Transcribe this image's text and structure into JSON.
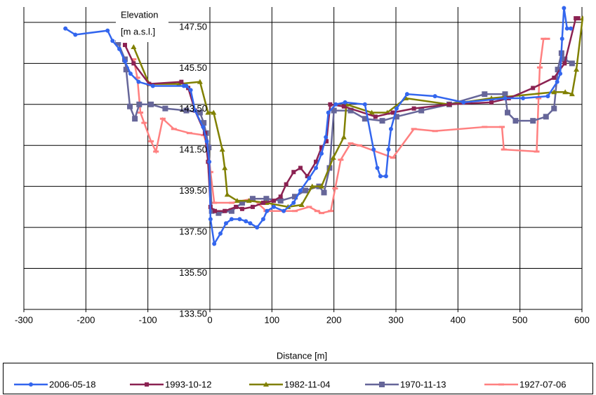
{
  "chart_data": {
    "type": "line",
    "y_title": "Elevation",
    "y_unit": "[m a.s.l.]",
    "x_title": "Distance [m]",
    "xlim": [
      -300,
      600
    ],
    "xticks": [
      -300,
      -200,
      -100,
      0,
      100,
      200,
      300,
      400,
      500,
      600
    ],
    "ylim": [
      133.5,
      148.25
    ],
    "yticks": [
      {
        "value": 133.5,
        "label": "133.50"
      },
      {
        "value": 135.5,
        "label": "135.50"
      },
      {
        "value": 137.5,
        "label": "137.50"
      },
      {
        "value": 139.5,
        "label": "139.50"
      },
      {
        "value": 141.5,
        "label": "141.50"
      },
      {
        "value": 143.5,
        "label": "143.50"
      },
      {
        "value": 145.5,
        "label": "145.50"
      },
      {
        "value": 147.5,
        "label": "147.50"
      }
    ],
    "grid": true,
    "legend": "bottom",
    "series": [
      {
        "name": "2006-05-18",
        "color": "#3366ee",
        "marker": "circle",
        "x": [
          -233,
          -217,
          -165,
          -157,
          -146,
          -137,
          -128,
          -115,
          -92,
          -42,
          -38,
          -31,
          -24,
          -11,
          -5,
          -1,
          1,
          7,
          17,
          26,
          35,
          48,
          58,
          65,
          76,
          86,
          92,
          103,
          119,
          135,
          146,
          160,
          171,
          180,
          187,
          191,
          203,
          218,
          250,
          264,
          270,
          275,
          284,
          288,
          292,
          301,
          318,
          363,
          409,
          476,
          505,
          545,
          560,
          565,
          568,
          571,
          576,
          582
        ],
        "values": [
          147.2,
          146.9,
          147.1,
          146.6,
          146.2,
          145.6,
          145.0,
          144.6,
          144.4,
          144.4,
          144.4,
          144.2,
          143.2,
          142.4,
          141.7,
          140.7,
          137.9,
          136.7,
          137.2,
          137.7,
          137.9,
          137.9,
          137.8,
          137.7,
          137.5,
          137.9,
          138.3,
          138.5,
          138.3,
          138.7,
          139.3,
          139.9,
          140.4,
          141.1,
          141.9,
          143.1,
          143.5,
          143.6,
          143.5,
          141.3,
          140.4,
          140.0,
          140.0,
          141.3,
          142.3,
          143.3,
          144.0,
          143.9,
          143.6,
          143.8,
          143.8,
          143.9,
          144.6,
          145.0,
          146.7,
          148.2,
          147.2,
          147.2
        ]
      },
      {
        "name": "1993-10-12",
        "color": "#8b2252",
        "marker": "square",
        "x": [
          -137,
          -123,
          -98,
          -46,
          -35,
          -24,
          -8,
          -3,
          1,
          8,
          24,
          42,
          52,
          69,
          86,
          103,
          114,
          123,
          135,
          146,
          157,
          171,
          180,
          188,
          194,
          216,
          267,
          295,
          329,
          386,
          454,
          482,
          521,
          555,
          572,
          590,
          594
        ],
        "values": [
          146.4,
          145.5,
          144.5,
          144.6,
          144.3,
          143.2,
          142.1,
          140.7,
          138.5,
          138.3,
          138.3,
          138.5,
          138.4,
          138.5,
          138.7,
          138.8,
          139.0,
          139.6,
          140.2,
          140.4,
          140.0,
          140.7,
          141.4,
          141.7,
          143.5,
          143.4,
          142.9,
          143.1,
          143.3,
          143.5,
          143.6,
          143.8,
          144.3,
          144.8,
          145.5,
          147.7,
          147.7
        ]
      },
      {
        "name": "1982-11-04",
        "color": "#808000",
        "marker": "triangle",
        "x": [
          -123,
          -98,
          -50,
          -16,
          -3,
          6,
          20,
          24,
          28,
          44,
          63,
          91,
          126,
          148,
          165,
          180,
          199,
          216,
          220,
          261,
          286,
          316,
          386,
          454,
          555,
          573,
          584,
          591,
          601
        ],
        "values": [
          146.3,
          144.5,
          144.5,
          144.6,
          143.1,
          143.1,
          141.3,
          140.4,
          139.1,
          138.8,
          138.8,
          138.7,
          138.5,
          138.6,
          139.5,
          139.5,
          140.9,
          141.9,
          143.5,
          143.1,
          143.1,
          143.8,
          143.5,
          143.8,
          144.1,
          144.1,
          144.0,
          145.2,
          147.7
        ]
      },
      {
        "name": "1970-11-13",
        "color": "#666699",
        "marker": "bigsquare",
        "x": [
          -148,
          -137,
          -135,
          -129,
          -121,
          -114,
          -95,
          -72,
          -38,
          -16,
          -10,
          -6,
          -2,
          3,
          14,
          35,
          52,
          69,
          91,
          114,
          137,
          154,
          176,
          184,
          193,
          200,
          227,
          250,
          278,
          301,
          341,
          386,
          443,
          476,
          480,
          493,
          521,
          542,
          555,
          561,
          567,
          572,
          584
        ],
        "values": [
          146.5,
          145.7,
          145.2,
          143.4,
          142.8,
          143.5,
          143.5,
          143.3,
          143.2,
          143.1,
          142.6,
          142.1,
          141.4,
          138.3,
          138.2,
          138.3,
          138.7,
          138.9,
          138.9,
          138.8,
          139.0,
          139.3,
          139.5,
          139.2,
          140.4,
          143.2,
          143.2,
          142.8,
          142.7,
          142.9,
          143.2,
          143.5,
          144.0,
          144.0,
          143.1,
          142.7,
          142.7,
          142.9,
          143.3,
          145.2,
          146.0,
          145.7,
          145.5
        ]
      },
      {
        "name": "1927-07-06",
        "color": "#ff8080",
        "marker": "dash",
        "x": [
          -123,
          -117,
          -112,
          -106,
          -95,
          -87,
          -76,
          -58,
          -33,
          -10,
          -3,
          1,
          7,
          35,
          69,
          91,
          137,
          160,
          173,
          180,
          195,
          202,
          211,
          227,
          241,
          295,
          329,
          363,
          443,
          471,
          474,
          527,
          530,
          532,
          538,
          544
        ],
        "values": [
          145.7,
          144.8,
          143.1,
          142.6,
          141.7,
          141.2,
          142.8,
          142.3,
          142.1,
          142.0,
          141.4,
          140.2,
          138.7,
          138.7,
          138.9,
          138.3,
          138.3,
          138.5,
          138.3,
          138.2,
          138.3,
          139.4,
          140.8,
          141.6,
          141.5,
          140.9,
          142.3,
          142.2,
          142.4,
          142.4,
          141.3,
          141.2,
          143.8,
          145.3,
          146.7,
          146.7
        ]
      }
    ]
  }
}
